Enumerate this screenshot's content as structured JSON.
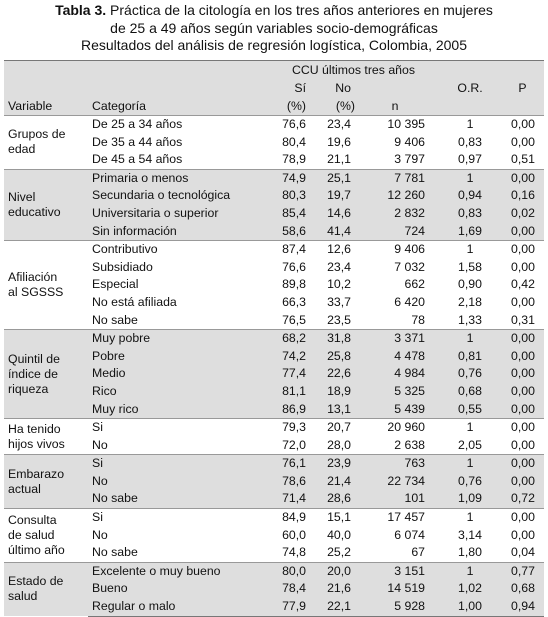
{
  "header": {
    "label": "Tabla 3.",
    "title_lines": [
      "Práctica de la citología en los tres años anteriores en mujeres",
      "de 25 a 49 años según variables socio-demográficas"
    ],
    "subtitle": "Resultados del análisis de regresión logística, Colombia, 2005"
  },
  "table": {
    "columns": {
      "variable": "Variable",
      "category": "Categoría",
      "group": "CCU últimos tres años",
      "si": "Sí",
      "no": "No",
      "si_unit": "(%)",
      "no_unit": "(%)",
      "n": "n",
      "or": "O.R.",
      "p": "P"
    },
    "groups": [
      {
        "label_lines": [
          "Grupos de",
          "edad"
        ],
        "rows": [
          [
            "De 25 a 34 años",
            "76,6",
            "23,4",
            "10 395",
            "1",
            "0,00"
          ],
          [
            "De 35 a 44 años",
            "80,4",
            "19,6",
            "9 406",
            "0,83",
            "0,00"
          ],
          [
            "De 45 a 54 años",
            "78,9",
            "21,1",
            "3 797",
            "0,97",
            "0,51"
          ]
        ]
      },
      {
        "label_lines": [
          "Nivel",
          "educativo"
        ],
        "rows": [
          [
            "Primaria o menos",
            "74,9",
            "25,1",
            "7 781",
            "1",
            "0,00"
          ],
          [
            "Secundaria o tecnológica",
            "80,3",
            "19,7",
            "12 260",
            "0,94",
            "0,16"
          ],
          [
            "Universitaria o superior",
            "85,4",
            "14,6",
            "2 832",
            "0,83",
            "0,02"
          ],
          [
            "Sin información",
            "58,6",
            "41,4",
            "724",
            "1,69",
            "0,00"
          ]
        ]
      },
      {
        "label_lines": [
          "Afiliación",
          "al SGSSS"
        ],
        "rows": [
          [
            "Contributivo",
            "87,4",
            "12,6",
            "9 406",
            "1",
            "0,00"
          ],
          [
            "Subsidiado",
            "76,6",
            "23,4",
            "7 032",
            "1,58",
            "0,00"
          ],
          [
            "Especial",
            "89,8",
            "10,2",
            "662",
            "0,90",
            "0,42"
          ],
          [
            "No está afiliada",
            "66,3",
            "33,7",
            "6 420",
            "2,18",
            "0,00"
          ],
          [
            "No sabe",
            "76,5",
            "23,5",
            "78",
            "1,33",
            "0,31"
          ]
        ]
      },
      {
        "label_lines": [
          "Quintil de",
          "índice de",
          "riqueza"
        ],
        "rows": [
          [
            "Muy pobre",
            "68,2",
            "31,8",
            "3 371",
            "1",
            "0,00"
          ],
          [
            "Pobre",
            "74,2",
            "25,8",
            "4 478",
            "0,81",
            "0,00"
          ],
          [
            "Medio",
            "77,4",
            "22,6",
            "4 984",
            "0,76",
            "0,00"
          ],
          [
            "Rico",
            "81,1",
            "18,9",
            "5 325",
            "0,68",
            "0,00"
          ],
          [
            "Muy rico",
            "86,9",
            "13,1",
            "5 439",
            "0,55",
            "0,00"
          ]
        ]
      },
      {
        "label_lines": [
          "Ha tenido",
          "hijos vivos"
        ],
        "rows": [
          [
            "Si",
            "79,3",
            "20,7",
            "20 960",
            "1",
            "0,00"
          ],
          [
            "No",
            "72,0",
            "28,0",
            "2 638",
            "2,05",
            "0,00"
          ]
        ]
      },
      {
        "label_lines": [
          "Embarazo",
          "actual"
        ],
        "rows": [
          [
            "Si",
            "76,1",
            "23,9",
            "763",
            "1",
            "0,00"
          ],
          [
            "No",
            "78,6",
            "21,4",
            "22 734",
            "0,76",
            "0,00"
          ],
          [
            "No sabe",
            "71,4",
            "28,6",
            "101",
            "1,09",
            "0,72"
          ]
        ]
      },
      {
        "label_lines": [
          "Consulta",
          "de salud",
          "último año"
        ],
        "rows": [
          [
            "Si",
            "84,9",
            "15,1",
            "17 457",
            "1",
            "0,00"
          ],
          [
            "No",
            "60,0",
            "40,0",
            "6 074",
            "3,14",
            "0,00"
          ],
          [
            "No sabe",
            "74,8",
            "25,2",
            "67",
            "1,80",
            "0,04"
          ]
        ]
      },
      {
        "label_lines": [
          "Estado de",
          "salud"
        ],
        "rows": [
          [
            "Excelente o muy bueno",
            "80,0",
            "20,0",
            "3 151",
            "1",
            "0,77"
          ],
          [
            "Bueno",
            "78,4",
            "21,6",
            "14 519",
            "1,02",
            "0,68"
          ],
          [
            "Regular o malo",
            "77,9",
            "22,1",
            "5 928",
            "1,00",
            "0,94"
          ]
        ]
      }
    ]
  }
}
